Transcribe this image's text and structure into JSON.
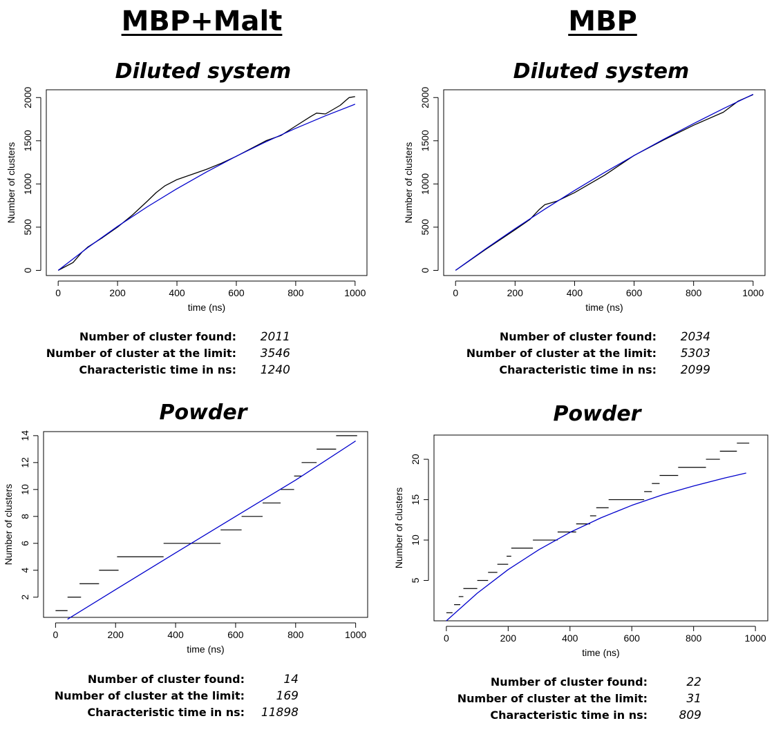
{
  "columns": [
    {
      "title": "MBP+Malt"
    },
    {
      "title": "MBP"
    }
  ],
  "stat_labels": {
    "found": "Number of cluster found:",
    "limit": "Number of cluster at the limit:",
    "time": "Characteristic time in ns:"
  },
  "panels": [
    {
      "title": "Diluted system",
      "stats": {
        "found": "2011",
        "limit": "3546",
        "time": "1240"
      }
    },
    {
      "title": "Diluted system",
      "stats": {
        "found": "2034",
        "limit": "5303",
        "time": "2099"
      }
    },
    {
      "title": "Powder",
      "stats": {
        "found": "14",
        "limit": "169",
        "time": "11898"
      }
    },
    {
      "title": "Powder",
      "stats": {
        "found": "22",
        "limit": "31",
        "time": "809"
      }
    }
  ],
  "chart_data": [
    {
      "type": "line",
      "xlabel": "time (ns)",
      "ylabel": "Number of clusters",
      "xlim": [
        -40,
        1040
      ],
      "ylim": [
        -60,
        2090
      ],
      "xticks": [
        0,
        200,
        400,
        600,
        800,
        1000
      ],
      "yticks": [
        0,
        500,
        1000,
        1500,
        2000
      ],
      "series": [
        {
          "color": "#000000",
          "x": [
            0,
            50,
            80,
            100,
            150,
            200,
            250,
            300,
            330,
            360,
            400,
            450,
            500,
            550,
            600,
            650,
            700,
            750,
            800,
            850,
            870,
            900,
            950,
            980,
            1000
          ],
          "y": [
            0,
            90,
            210,
            270,
            380,
            500,
            640,
            800,
            900,
            980,
            1050,
            1110,
            1170,
            1240,
            1320,
            1410,
            1500,
            1560,
            1670,
            1780,
            1820,
            1810,
            1910,
            2000,
            2011
          ]
        },
        {
          "color": "#0000cc",
          "x": [
            0,
            100,
            200,
            300,
            400,
            500,
            600,
            700,
            800,
            900,
            1000
          ],
          "y": [
            0,
            264,
            509,
            735,
            945,
            1140,
            1321,
            1488,
            1644,
            1789,
            1923
          ]
        }
      ]
    },
    {
      "type": "line",
      "xlabel": "time (ns)",
      "ylabel": "Number of clusters",
      "xlim": [
        -40,
        1040
      ],
      "ylim": [
        -60,
        2090
      ],
      "xticks": [
        0,
        200,
        400,
        600,
        800,
        1000
      ],
      "yticks": [
        0,
        500,
        1000,
        1500,
        2000
      ],
      "series": [
        {
          "color": "#000000",
          "x": [
            0,
            100,
            200,
            250,
            280,
            300,
            340,
            400,
            500,
            600,
            700,
            800,
            900,
            950,
            1000
          ],
          "y": [
            0,
            240,
            470,
            590,
            700,
            760,
            800,
            900,
            1100,
            1330,
            1510,
            1680,
            1830,
            1960,
            2034
          ]
        },
        {
          "color": "#0000cc",
          "x": [
            0,
            100,
            200,
            300,
            400,
            500,
            600,
            700,
            800,
            900,
            1000
          ],
          "y": [
            0,
            247,
            483,
            709,
            925,
            1132,
            1329,
            1518,
            1699,
            1872,
            2037
          ]
        }
      ]
    },
    {
      "type": "line",
      "xlabel": "time (ns)",
      "ylabel": "Number of clusters",
      "xlim": [
        -40,
        1040
      ],
      "ylim": [
        0.5,
        14.3
      ],
      "xticks": [
        0,
        200,
        400,
        600,
        800,
        1000
      ],
      "yticks": [
        2,
        4,
        6,
        8,
        10,
        12,
        14
      ],
      "steps": [
        {
          "y": 1,
          "x": [
            0,
            40
          ]
        },
        {
          "y": 2,
          "x": [
            40,
            85
          ]
        },
        {
          "y": 3,
          "x": [
            80,
            145
          ]
        },
        {
          "y": 4,
          "x": [
            145,
            210
          ]
        },
        {
          "y": 5,
          "x": [
            205,
            360
          ]
        },
        {
          "y": 6,
          "x": [
            360,
            550
          ]
        },
        {
          "y": 7,
          "x": [
            550,
            620
          ]
        },
        {
          "y": 8,
          "x": [
            620,
            690
          ]
        },
        {
          "y": 9,
          "x": [
            690,
            750
          ]
        },
        {
          "y": 10,
          "x": [
            750,
            795
          ]
        },
        {
          "y": 11,
          "x": [
            795,
            820
          ]
        },
        {
          "y": 12,
          "x": [
            820,
            870
          ]
        },
        {
          "y": 13,
          "x": [
            870,
            935
          ]
        },
        {
          "y": 14,
          "x": [
            935,
            1005
          ]
        }
      ],
      "series": [
        {
          "color": "#0000cc",
          "x": [
            40,
            200,
            400,
            600,
            800,
            1000
          ],
          "y": [
            0.36,
            2.56,
            5.29,
            8.0,
            10.7,
            13.6
          ]
        }
      ]
    },
    {
      "type": "line",
      "xlabel": "time (ns)",
      "ylabel": "Number of clusters",
      "xlim": [
        -40,
        1040
      ],
      "ylim": [
        0,
        23
      ],
      "xticks": [
        0,
        200,
        400,
        600,
        800,
        1000
      ],
      "yticks": [
        5,
        10,
        15,
        20
      ],
      "steps": [
        {
          "y": 1,
          "x": [
            0,
            20
          ]
        },
        {
          "y": 2,
          "x": [
            25,
            45
          ]
        },
        {
          "y": 3,
          "x": [
            40,
            55
          ]
        },
        {
          "y": 4,
          "x": [
            55,
            100
          ]
        },
        {
          "y": 5,
          "x": [
            100,
            135
          ]
        },
        {
          "y": 6,
          "x": [
            135,
            165
          ]
        },
        {
          "y": 7,
          "x": [
            165,
            200
          ]
        },
        {
          "y": 8,
          "x": [
            195,
            210
          ]
        },
        {
          "y": 9,
          "x": [
            210,
            280
          ]
        },
        {
          "y": 10,
          "x": [
            280,
            360
          ]
        },
        {
          "y": 11,
          "x": [
            360,
            420
          ]
        },
        {
          "y": 12,
          "x": [
            420,
            465
          ]
        },
        {
          "y": 13,
          "x": [
            465,
            485
          ]
        },
        {
          "y": 14,
          "x": [
            485,
            525
          ]
        },
        {
          "y": 15,
          "x": [
            525,
            640
          ]
        },
        {
          "y": 16,
          "x": [
            640,
            665
          ]
        },
        {
          "y": 17,
          "x": [
            665,
            690
          ]
        },
        {
          "y": 18,
          "x": [
            690,
            750
          ]
        },
        {
          "y": 19,
          "x": [
            750,
            840
          ]
        },
        {
          "y": 20,
          "x": [
            840,
            885
          ]
        },
        {
          "y": 21,
          "x": [
            885,
            940
          ]
        },
        {
          "y": 22,
          "x": [
            940,
            980
          ]
        }
      ],
      "series": [
        {
          "color": "#0000cc",
          "x": [
            0,
            100,
            200,
            300,
            400,
            500,
            600,
            700,
            800,
            900,
            970
          ],
          "y": [
            0,
            3.42,
            6.34,
            8.82,
            10.95,
            12.75,
            14.3,
            15.6,
            16.7,
            17.68,
            18.3
          ]
        }
      ]
    }
  ]
}
